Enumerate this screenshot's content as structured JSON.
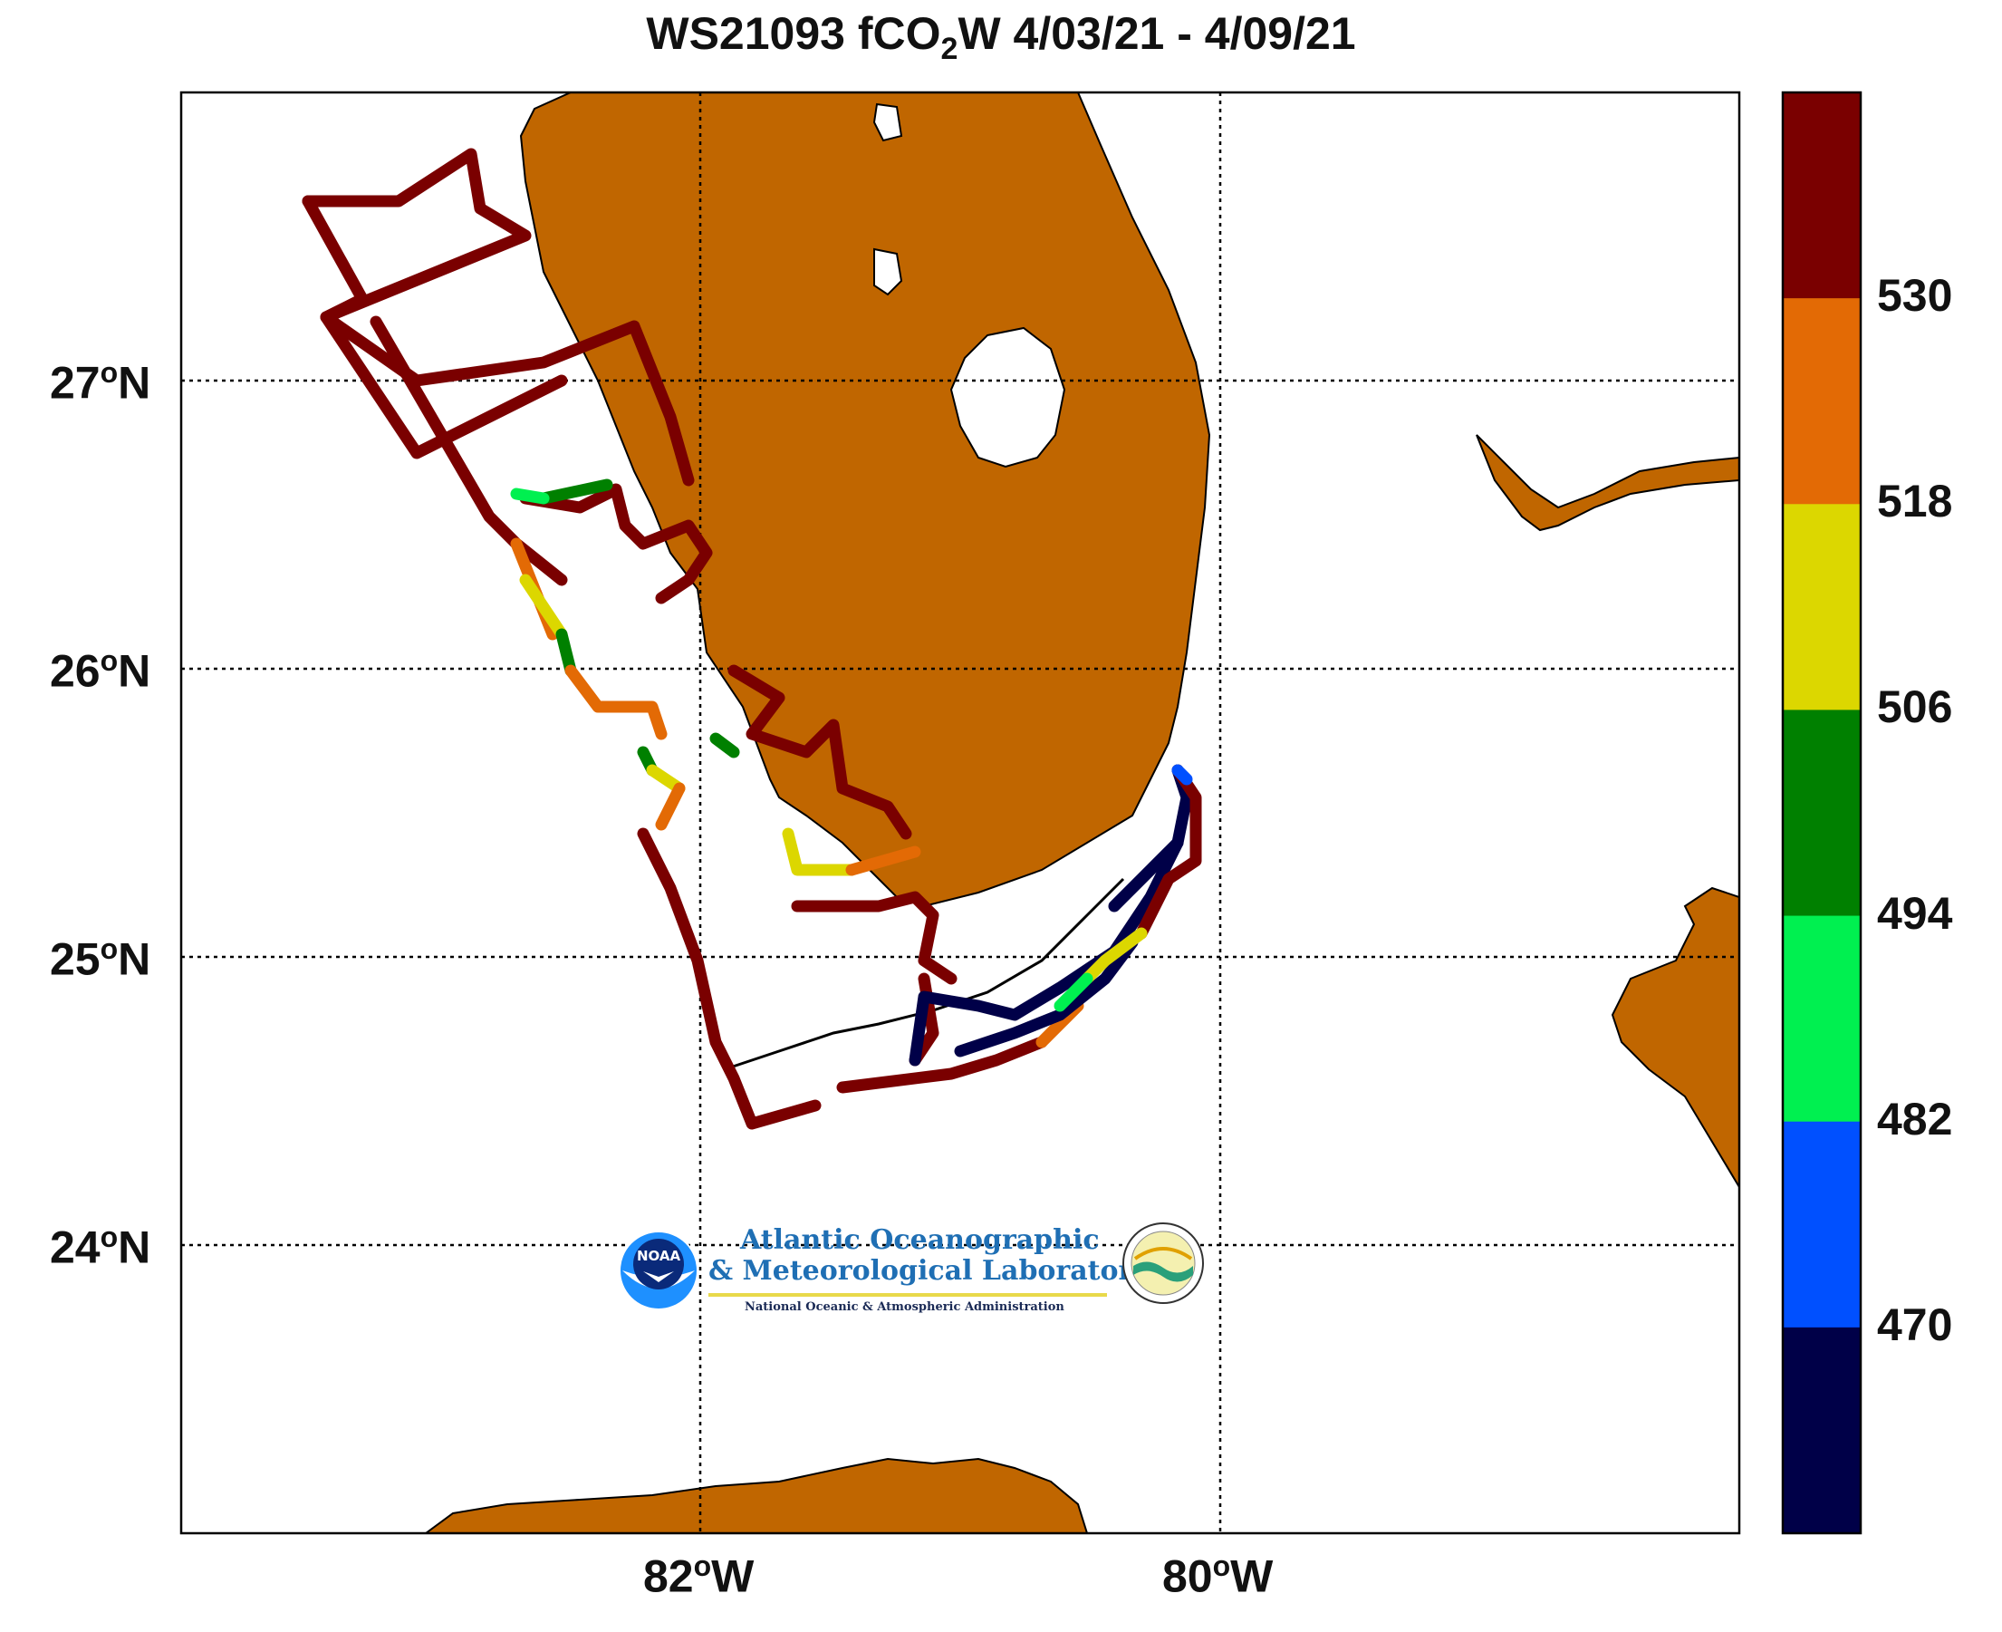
{
  "title": {
    "prefix": "WS21093 fCO",
    "subscript": "2",
    "suffix": "W 4/03/21 - 4/09/21"
  },
  "axes": {
    "lat_ticks": [
      {
        "value": 27,
        "label_num": "27",
        "deg": "o",
        "hemi": "N"
      },
      {
        "value": 26,
        "label_num": "26",
        "deg": "o",
        "hemi": "N"
      },
      {
        "value": 25,
        "label_num": "25",
        "deg": "o",
        "hemi": "N"
      },
      {
        "value": 24,
        "label_num": "24",
        "deg": "o",
        "hemi": "N"
      }
    ],
    "lon_ticks": [
      {
        "value": -82,
        "label_num": "82",
        "deg": "o",
        "hemi": "W"
      },
      {
        "value": -80,
        "label_num": "80",
        "deg": "o",
        "hemi": "W"
      }
    ],
    "lon_range": [
      -84,
      -78
    ],
    "lat_range": [
      23,
      28
    ]
  },
  "colorbar": {
    "ticks": [
      "530",
      "518",
      "506",
      "494",
      "482",
      "470"
    ],
    "colors": [
      "#7a0000",
      "#e36a05",
      "#dcd700",
      "#008000",
      "#00f050",
      "#0050ff",
      "#000048"
    ]
  },
  "colors": {
    "land": "#c06600",
    "land_outline": "#000000"
  },
  "logo": {
    "line1": "Atlantic Oceanographic",
    "line2": "& Meteorological Laboratory",
    "line3": "National Oceanic & Atmospheric Administration",
    "emblem_text": "NOAA"
  }
}
